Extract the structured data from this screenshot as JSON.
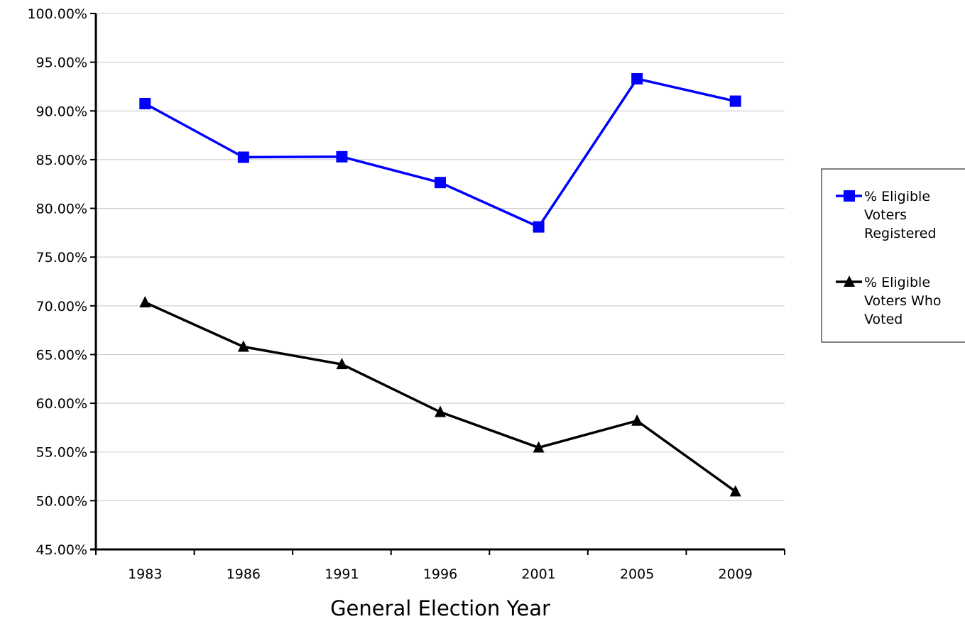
{
  "chart_data": {
    "type": "line",
    "categories": [
      "1983",
      "1986",
      "1991",
      "1996",
      "2001",
      "2005",
      "2009"
    ],
    "series": [
      {
        "name": "% Eligible Voters Registered",
        "legend_lines": [
          "% Eligible",
          "Voters",
          "Registered"
        ],
        "values": [
          90.75,
          85.25,
          85.3,
          82.65,
          78.1,
          93.3,
          91.0
        ],
        "color": "#0000ff",
        "marker": "square"
      },
      {
        "name": "% Eligible Voters Who Voted",
        "legend_lines": [
          "% Eligible",
          "Voters Who",
          "Voted"
        ],
        "values": [
          70.35,
          65.8,
          64.0,
          59.1,
          55.45,
          58.2,
          50.95
        ],
        "color": "#000000",
        "marker": "triangle"
      }
    ],
    "xlabel": "General Election Year",
    "ylabel": "",
    "ylim": [
      45,
      100
    ],
    "yticks": [
      "45.00%",
      "50.00%",
      "55.00%",
      "60.00%",
      "65.00%",
      "70.00%",
      "75.00%",
      "80.00%",
      "85.00%",
      "90.00%",
      "95.00%",
      "100.00%"
    ],
    "grid": true,
    "legend_position": "right"
  }
}
